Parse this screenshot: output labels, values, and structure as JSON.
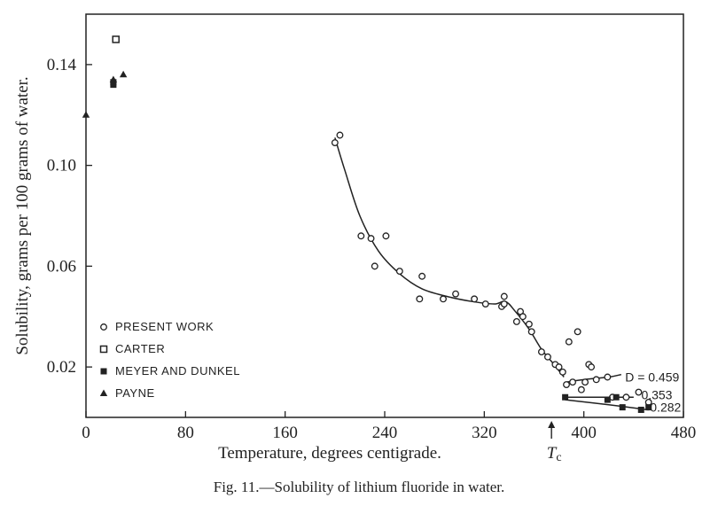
{
  "chart_data": {
    "type": "scatter",
    "xlabel": "Temperature, degrees centigrade.",
    "ylabel": "Solubility, grams per 100 grams of water.",
    "caption": "Fig. 11.—Solubility of lithium fluoride in water.",
    "xlim": [
      0,
      480
    ],
    "ylim": [
      0,
      0.16
    ],
    "x_ticks": [
      0,
      80,
      160,
      240,
      320,
      400,
      480
    ],
    "x_tick_labels": [
      "0",
      "80",
      "160",
      "240",
      "320",
      "400",
      "480"
    ],
    "y_ticks": [
      0.02,
      0.06,
      0.1,
      0.14
    ],
    "y_tick_labels": [
      "0.02",
      "0.06",
      "0.10",
      "0.14"
    ],
    "critical_marker": {
      "label": "T",
      "subscript": "c",
      "x": 374
    },
    "series": [
      {
        "name": "PRESENT WORK",
        "marker": "open-circle",
        "points": [
          [
            200,
            0.109
          ],
          [
            204,
            0.112
          ],
          [
            221,
            0.072
          ],
          [
            229,
            0.071
          ],
          [
            232,
            0.06
          ],
          [
            241,
            0.072
          ],
          [
            252,
            0.058
          ],
          [
            268,
            0.047
          ],
          [
            270,
            0.056
          ],
          [
            287,
            0.047
          ],
          [
            297,
            0.049
          ],
          [
            312,
            0.047
          ],
          [
            321,
            0.045
          ],
          [
            334,
            0.044
          ],
          [
            336,
            0.045
          ],
          [
            336,
            0.048
          ],
          [
            346,
            0.038
          ],
          [
            349,
            0.042
          ],
          [
            351,
            0.04
          ],
          [
            356,
            0.037
          ],
          [
            358,
            0.034
          ],
          [
            366,
            0.026
          ],
          [
            371,
            0.024
          ],
          [
            377,
            0.021
          ],
          [
            380,
            0.02
          ],
          [
            383,
            0.018
          ],
          [
            386,
            0.013
          ],
          [
            388,
            0.03
          ],
          [
            391,
            0.014
          ],
          [
            395,
            0.034
          ],
          [
            398,
            0.011
          ],
          [
            401,
            0.014
          ],
          [
            404,
            0.021
          ],
          [
            406,
            0.02
          ],
          [
            410,
            0.015
          ],
          [
            419,
            0.016
          ],
          [
            423,
            0.008
          ],
          [
            434,
            0.008
          ],
          [
            444,
            0.01
          ],
          [
            452,
            0.006
          ]
        ]
      },
      {
        "name": "CARTER",
        "marker": "open-square",
        "points": [
          [
            24,
            0.15
          ]
        ]
      },
      {
        "name": "MEYER AND DUNKEL",
        "marker": "filled-square",
        "points": [
          [
            22,
            0.133
          ],
          [
            22,
            0.132
          ],
          [
            385,
            0.008
          ],
          [
            419,
            0.007
          ],
          [
            426,
            0.008
          ],
          [
            431,
            0.004
          ],
          [
            446,
            0.003
          ],
          [
            452,
            0.004
          ]
        ]
      },
      {
        "name": "PAYNE",
        "marker": "filled-triangle",
        "points": [
          [
            22,
            0.134
          ],
          [
            30,
            0.136
          ],
          [
            0,
            0.12
          ]
        ]
      }
    ],
    "curves": [
      {
        "points": [
          [
            200,
            0.111
          ],
          [
            208,
            0.098
          ],
          [
            220,
            0.08
          ],
          [
            235,
            0.066
          ],
          [
            252,
            0.057
          ],
          [
            270,
            0.051
          ],
          [
            290,
            0.048
          ],
          [
            310,
            0.046
          ],
          [
            328,
            0.045
          ],
          [
            337,
            0.046
          ],
          [
            345,
            0.042
          ],
          [
            356,
            0.035
          ],
          [
            366,
            0.027
          ],
          [
            376,
            0.021
          ],
          [
            384,
            0.016
          ]
        ]
      },
      {
        "points": [
          [
            386,
            0.014
          ],
          [
            400,
            0.015
          ],
          [
            420,
            0.016
          ],
          [
            430,
            0.017
          ]
        ]
      },
      {
        "points": [
          [
            385,
            0.008
          ],
          [
            410,
            0.008
          ],
          [
            440,
            0.008
          ]
        ]
      },
      {
        "points": [
          [
            385,
            0.007
          ],
          [
            420,
            0.005
          ],
          [
            452,
            0.003
          ]
        ]
      }
    ],
    "annotations": [
      {
        "text": "D = 0.459",
        "x": 431,
        "y": 0.016
      },
      {
        "text": "0.353",
        "x": 444,
        "y": 0.009
      },
      {
        "text": "0.282",
        "x": 451,
        "y": 0.004
      }
    ]
  }
}
